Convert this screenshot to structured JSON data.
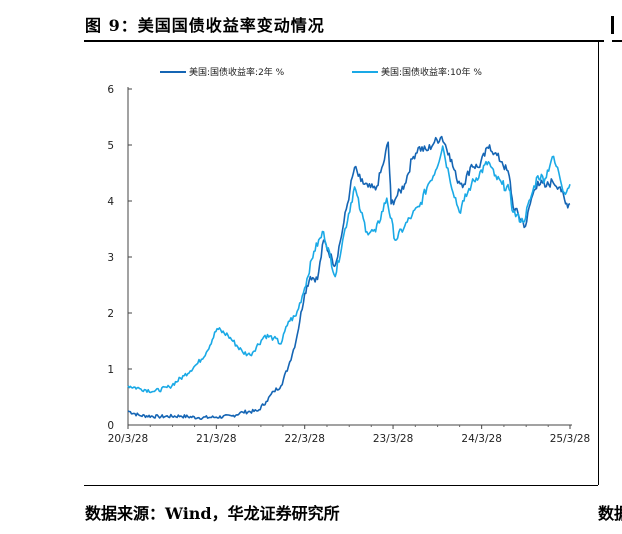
{
  "figure": {
    "title": "图 9：美国国债收益率变动情况",
    "source": "数据来源：Wind，华龙证券研究所",
    "source_right_fragment": "数据"
  },
  "colors": {
    "series_2y": "#1565b4",
    "series_10y": "#1aa9e6"
  },
  "chart_data": {
    "type": "line",
    "title": "",
    "xlabel": "",
    "ylabel": "",
    "x_ticks": [
      "20/3/28",
      "21/3/28",
      "22/3/28",
      "23/3/28",
      "24/3/28",
      "25/3/28"
    ],
    "y_ticks": [
      "0",
      "1",
      "2",
      "3",
      "4",
      "5",
      "6"
    ],
    "ylim": [
      0,
      6
    ],
    "xlim": [
      "2020-03-28",
      "2025-03-28"
    ],
    "legend_position": "top",
    "grid": false,
    "series": [
      {
        "name": "美国:国债收益率:2年 %",
        "color": "#1565b4",
        "points": [
          [
            "2020-03-28",
            0.25
          ],
          [
            "2020-05-15",
            0.17
          ],
          [
            "2020-08-01",
            0.15
          ],
          [
            "2020-11-01",
            0.16
          ],
          [
            "2021-01-15",
            0.13
          ],
          [
            "2021-03-28",
            0.14
          ],
          [
            "2021-06-01",
            0.16
          ],
          [
            "2021-07-15",
            0.23
          ],
          [
            "2021-09-15",
            0.25
          ],
          [
            "2021-10-20",
            0.42
          ],
          [
            "2021-11-20",
            0.6
          ],
          [
            "2021-12-20",
            0.7
          ],
          [
            "2022-01-20",
            1.05
          ],
          [
            "2022-02-20",
            1.5
          ],
          [
            "2022-03-28",
            2.35
          ],
          [
            "2022-04-20",
            2.65
          ],
          [
            "2022-05-20",
            2.6
          ],
          [
            "2022-06-14",
            3.3
          ],
          [
            "2022-07-20",
            2.95
          ],
          [
            "2022-08-01",
            2.85
          ],
          [
            "2022-09-01",
            3.5
          ],
          [
            "2022-10-01",
            4.2
          ],
          [
            "2022-10-20",
            4.6
          ],
          [
            "2022-11-15",
            4.35
          ],
          [
            "2022-12-15",
            4.25
          ],
          [
            "2023-01-15",
            4.2
          ],
          [
            "2023-02-15",
            4.65
          ],
          [
            "2023-03-08",
            5.05
          ],
          [
            "2023-03-20",
            3.95
          ],
          [
            "2023-04-15",
            4.1
          ],
          [
            "2023-05-15",
            4.3
          ],
          [
            "2023-06-15",
            4.75
          ],
          [
            "2023-07-10",
            4.95
          ],
          [
            "2023-08-15",
            4.9
          ],
          [
            "2023-09-15",
            5.05
          ],
          [
            "2023-10-15",
            5.15
          ],
          [
            "2023-11-15",
            4.85
          ],
          [
            "2023-12-15",
            4.4
          ],
          [
            "2024-01-15",
            4.3
          ],
          [
            "2024-02-15",
            4.65
          ],
          [
            "2024-03-15",
            4.6
          ],
          [
            "2024-04-30",
            5.0
          ],
          [
            "2024-05-20",
            4.85
          ],
          [
            "2024-06-20",
            4.7
          ],
          [
            "2024-07-20",
            4.45
          ],
          [
            "2024-08-05",
            3.9
          ],
          [
            "2024-09-25",
            3.55
          ],
          [
            "2024-10-20",
            4.05
          ],
          [
            "2024-11-15",
            4.35
          ],
          [
            "2024-12-15",
            4.25
          ],
          [
            "2025-01-15",
            4.35
          ],
          [
            "2025-02-15",
            4.25
          ],
          [
            "2025-03-10",
            3.95
          ],
          [
            "2025-03-28",
            3.95
          ]
        ]
      },
      {
        "name": "美国:国债收益率:10年 %",
        "color": "#1aa9e6",
        "points": [
          [
            "2020-03-28",
            0.7
          ],
          [
            "2020-05-15",
            0.65
          ],
          [
            "2020-07-15",
            0.6
          ],
          [
            "2020-09-15",
            0.68
          ],
          [
            "2020-11-15",
            0.88
          ],
          [
            "2021-01-10",
            1.1
          ],
          [
            "2021-02-15",
            1.3
          ],
          [
            "2021-03-31",
            1.72
          ],
          [
            "2021-05-15",
            1.6
          ],
          [
            "2021-07-15",
            1.3
          ],
          [
            "2021-08-15",
            1.25
          ],
          [
            "2021-10-15",
            1.6
          ],
          [
            "2021-11-20",
            1.55
          ],
          [
            "2021-12-20",
            1.45
          ],
          [
            "2022-01-20",
            1.85
          ],
          [
            "2022-02-20",
            1.95
          ],
          [
            "2022-03-28",
            2.45
          ],
          [
            "2022-05-05",
            3.1
          ],
          [
            "2022-06-14",
            3.45
          ],
          [
            "2022-08-01",
            2.65
          ],
          [
            "2022-09-01",
            3.3
          ],
          [
            "2022-10-20",
            4.25
          ],
          [
            "2022-11-15",
            3.8
          ],
          [
            "2022-12-10",
            3.45
          ],
          [
            "2023-01-15",
            3.45
          ],
          [
            "2023-03-02",
            4.05
          ],
          [
            "2023-04-06",
            3.3
          ],
          [
            "2023-05-15",
            3.55
          ],
          [
            "2023-06-15",
            3.75
          ],
          [
            "2023-07-15",
            3.9
          ],
          [
            "2023-08-20",
            4.3
          ],
          [
            "2023-09-20",
            4.55
          ],
          [
            "2023-10-19",
            4.98
          ],
          [
            "2023-11-15",
            4.45
          ],
          [
            "2023-12-27",
            3.8
          ],
          [
            "2024-01-15",
            4.0
          ],
          [
            "2024-02-15",
            4.3
          ],
          [
            "2024-04-25",
            4.7
          ],
          [
            "2024-05-20",
            4.45
          ],
          [
            "2024-06-20",
            4.3
          ],
          [
            "2024-07-20",
            4.2
          ],
          [
            "2024-08-05",
            3.8
          ],
          [
            "2024-09-16",
            3.62
          ],
          [
            "2024-10-20",
            4.1
          ],
          [
            "2024-11-15",
            4.45
          ],
          [
            "2024-12-15",
            4.4
          ],
          [
            "2025-01-14",
            4.79
          ],
          [
            "2025-02-10",
            4.5
          ],
          [
            "2025-03-04",
            4.15
          ],
          [
            "2025-03-28",
            4.3
          ]
        ]
      }
    ]
  }
}
